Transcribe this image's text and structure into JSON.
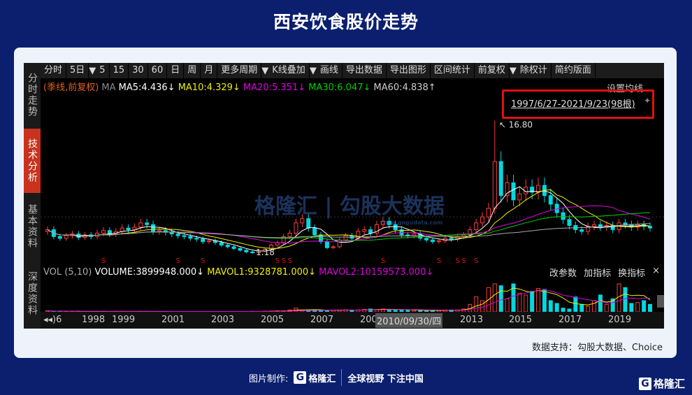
{
  "title": "西安饮食股价走势",
  "side_tabs": [
    "分时走势",
    "技术分析",
    "基本资料",
    "深度资料"
  ],
  "active_tab": 1,
  "toolbar": [
    "分时",
    "5日",
    "5",
    "15",
    "30",
    "60",
    "日",
    "周",
    "月",
    "更多周期",
    "K线叠加",
    "画线",
    "导出数据",
    "导出图形",
    "区间统计",
    "前复权",
    "除权计",
    "简约版面"
  ],
  "toolbar_dropdowns": [
    1,
    9,
    10,
    15
  ],
  "ma": {
    "label": "(季线,前复权)",
    "prefix": "MA",
    "ma5": "MA5:4.436↓",
    "ma10": "MA10:4.329↓",
    "ma20": "MA20:5.351↓",
    "ma30": "MA30:6.047↓",
    "ma60": "MA60:4.838↑",
    "set": "设置均线"
  },
  "range_label": "1997/6/27-2021/9/23(98根)",
  "colors": {
    "up": "#ff3b3b",
    "down": "#00d8e0",
    "ma5": "#ffffff",
    "ma10": "#f0f000",
    "ma20": "#e000e0",
    "ma30": "#00d000",
    "ma60": "#aaaaaa",
    "highlight": "#e01010"
  },
  "annotations": {
    "high": "16.80",
    "low": "1.18",
    "s_marker": "S"
  },
  "vol": {
    "label": "VOL (5,10)",
    "volume": "VOLUME:3899948.000↓",
    "mavol1": "MAVOL1:9328781.000↓",
    "mavol2": "MAVOL2:10159573.000↓",
    "buttons": [
      "改参数",
      "加指标",
      "换指标",
      "×"
    ]
  },
  "xaxis": {
    "first": "◂◂)6",
    "years": [
      "1998",
      "1999",
      "2001",
      "2003",
      "2005",
      "2007",
      "2009",
      "2013",
      "2015",
      "2017",
      "2019"
    ],
    "tooltip": "2010/09/30/四"
  },
  "watermark": {
    "brand": "格隆汇",
    "partner": "勾股大数据",
    "url": "www.gogudata.com"
  },
  "source": "数据支持：勾股大数据、Choice",
  "footer": {
    "made_by": "图片制作:",
    "brand": "格隆汇",
    "slogan": "全球视野 下注中国",
    "logo_letter": "G"
  },
  "chart_data": {
    "type": "candlestick",
    "period": "quarterly",
    "x_start": "1997Q2",
    "x_end": "2021Q3",
    "closes": [
      4.0,
      3.2,
      3.0,
      3.3,
      3.5,
      3.1,
      3.4,
      3.2,
      3.6,
      3.9,
      3.5,
      3.8,
      4.2,
      4.0,
      4.3,
      4.8,
      4.6,
      3.8,
      3.9,
      3.7,
      3.5,
      3.3,
      3.2,
      3.0,
      2.9,
      2.6,
      2.7,
      2.5,
      2.2,
      2.0,
      1.8,
      1.6,
      1.4,
      1.3,
      1.5,
      1.7,
      2.2,
      2.5,
      3.2,
      3.6,
      4.8,
      5.3,
      4.2,
      3.4,
      2.6,
      1.9,
      2.0,
      2.8,
      3.3,
      3.0,
      3.8,
      4.0,
      3.6,
      4.6,
      5.0,
      4.6,
      4.0,
      3.4,
      3.3,
      3.5,
      3.0,
      2.8,
      2.6,
      2.7,
      3.0,
      2.9,
      3.2,
      3.4,
      4.0,
      4.8,
      5.5,
      6.5,
      12.0,
      8.0,
      9.5,
      7.5,
      8.2,
      9.0,
      8.4,
      9.2,
      8.0,
      7.0,
      6.0,
      5.2,
      4.5,
      4.0,
      3.8,
      4.4,
      4.6,
      4.3,
      4.5,
      4.0,
      4.8,
      4.6,
      4.3,
      4.6,
      4.4,
      4.2
    ],
    "volumes_million": [
      1,
      0.5,
      0.6,
      0.5,
      0.5,
      0.5,
      0.4,
      0.4,
      0.4,
      0.5,
      0.4,
      0.5,
      0.5,
      0.4,
      0.4,
      0.5,
      0.4,
      0.4,
      0.4,
      0.4,
      0.3,
      0.3,
      0.3,
      0.3,
      0.4,
      0.4,
      0.3,
      0.4,
      0.3,
      0.3,
      0.3,
      0.3,
      0.4,
      0.5,
      0.4,
      0.6,
      0.7,
      1,
      1,
      2,
      4,
      2,
      2,
      1.5,
      1.5,
      1.5,
      2,
      2,
      2,
      1.5,
      2,
      2.5,
      3,
      2.5,
      3,
      2.5,
      2,
      2,
      2,
      1.5,
      1.5,
      1,
      1.5,
      1.5,
      2,
      2,
      2,
      3,
      8,
      16,
      12,
      26,
      30,
      28,
      14,
      30,
      20,
      18,
      22,
      25,
      24,
      12,
      9,
      4,
      3,
      16,
      8,
      6,
      12,
      18,
      8,
      14,
      30,
      26,
      9,
      10,
      12,
      8
    ],
    "y_range": [
      1.18,
      16.8
    ],
    "high": 16.8,
    "low": 1.18
  }
}
